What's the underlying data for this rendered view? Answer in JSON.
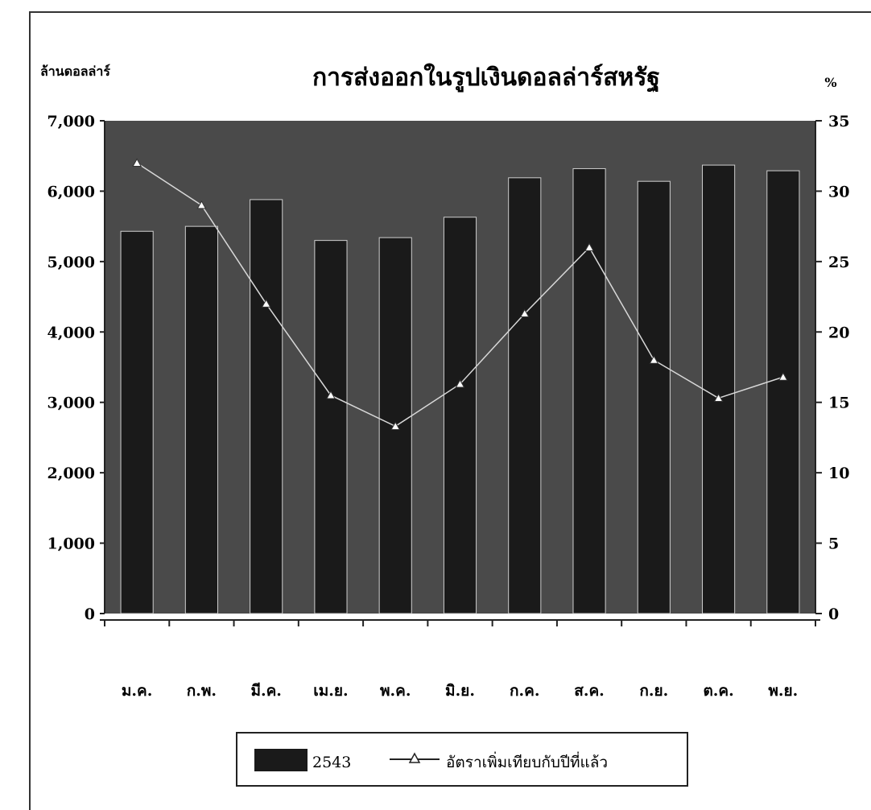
{
  "chart_data": {
    "type": "bar",
    "title": "การส่งออกในรูปเงินดอลล่าร์สหรัฐ",
    "ylabel": "ล้านดอลล่าร์",
    "y2label": "%",
    "categories": [
      "ม.ค.",
      "ก.พ.",
      "มี.ค.",
      "เม.ย.",
      "พ.ค.",
      "มิ.ย.",
      "ก.ค.",
      "ส.ค.",
      "ก.ย.",
      "ต.ค.",
      "พ.ย."
    ],
    "series": [
      {
        "name": "2543",
        "type": "bar",
        "axis": "left",
        "values": [
          5430,
          5500,
          5880,
          5300,
          5340,
          5630,
          6190,
          6320,
          6140,
          6370,
          6290
        ]
      },
      {
        "name": "อัตราเพิ่มเทียบกับปีที่แล้ว",
        "type": "line",
        "axis": "right",
        "values": [
          32,
          29,
          22,
          15.5,
          13.3,
          16.3,
          21.3,
          26,
          18,
          15.3,
          16.8
        ]
      }
    ],
    "ylim": [
      0,
      7000
    ],
    "y2lim": [
      0,
      35
    ],
    "yticks": [
      "0",
      "1,000",
      "2,000",
      "3,000",
      "4,000",
      "5,000",
      "6,000",
      "7,000"
    ],
    "y2ticks": [
      "0",
      "5",
      "10",
      "15",
      "20",
      "25",
      "30",
      "35"
    ],
    "legend": "bottom",
    "grid": false,
    "colors": {
      "plot_bg": "#4a4a4a",
      "bar": "#1a1a1a",
      "line": "#d8d8d8"
    }
  }
}
